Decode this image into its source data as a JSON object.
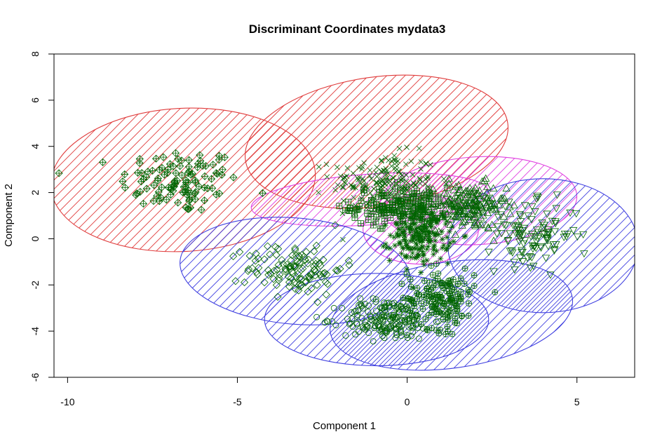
{
  "chart_data": {
    "type": "scatter",
    "title": "Discriminant Coordinates mydata3",
    "xlabel": "Component 1",
    "ylabel": "Component 2",
    "xlim": [
      -10.4,
      6.7
    ],
    "ylim": [
      -6.0,
      8.0
    ],
    "x_ticks": [
      -10,
      -5,
      0,
      5
    ],
    "y_ticks": [
      -6,
      -4,
      -2,
      0,
      2,
      4,
      6,
      8
    ],
    "x_tick_labels": [
      "-10",
      "-5",
      "0",
      "5"
    ],
    "y_tick_labels": [
      "-6",
      "-4",
      "-2",
      "0",
      "2",
      "4",
      "6",
      "8"
    ],
    "grid": false,
    "point_color": "#006400",
    "series": [
      {
        "marker": "diamond-plus",
        "center": [
          -6.7,
          2.5
        ],
        "spread": [
          1.6,
          1.3
        ],
        "count": 110,
        "ellipse": {
          "cx": -6.6,
          "cy": 2.55,
          "rx": 3.9,
          "ry": 3.1,
          "angle": -3
        },
        "ellipse_color": "#e03c3c"
      },
      {
        "marker": "x",
        "center": [
          -0.7,
          2.5
        ],
        "spread": [
          1.4,
          1.1
        ],
        "count": 160,
        "ellipse": {
          "cx": -0.9,
          "cy": 4.2,
          "rx": 3.9,
          "ry": 2.8,
          "angle": -8
        },
        "ellipse_color": "#e03c3c"
      },
      {
        "marker": "box-plus",
        "center": [
          -0.2,
          1.4
        ],
        "spread": [
          1.3,
          0.75
        ],
        "count": 160,
        "ellipse": {
          "cx": -1.1,
          "cy": 1.7,
          "rx": 3.5,
          "ry": 1.1,
          "angle": -4
        },
        "ellipse_color": "#e040e0"
      },
      {
        "marker": "star",
        "center": [
          0.4,
          0.2
        ],
        "spread": [
          0.8,
          1.1
        ],
        "count": 220,
        "ellipse": {
          "cx": 0.4,
          "cy": 0.4,
          "rx": 1.7,
          "ry": 1.5,
          "angle": 0
        },
        "ellipse_color": "#e040e0"
      },
      {
        "marker": "triangle-up",
        "center": [
          1.8,
          1.4
        ],
        "spread": [
          1.0,
          0.9
        ],
        "count": 170,
        "ellipse": {
          "cx": 2.1,
          "cy": 1.65,
          "rx": 2.9,
          "ry": 1.9,
          "angle": -3
        },
        "ellipse_color": "#e040e0"
      },
      {
        "marker": "diamond",
        "center": [
          -3.3,
          -1.3
        ],
        "spread": [
          1.3,
          1.0
        ],
        "count": 120,
        "ellipse": {
          "cx": -3.3,
          "cy": -1.4,
          "rx": 3.4,
          "ry": 2.3,
          "angle": 5
        },
        "ellipse_color": "#4040e0"
      },
      {
        "marker": "circle",
        "center": [
          -0.6,
          -3.5
        ],
        "spread": [
          1.2,
          0.8
        ],
        "count": 180,
        "ellipse": {
          "cx": -0.9,
          "cy": -3.5,
          "rx": 3.3,
          "ry": 2.0,
          "angle": 0
        },
        "ellipse_color": "#4040e0"
      },
      {
        "marker": "circle-plus",
        "center": [
          1.0,
          -2.6
        ],
        "spread": [
          0.9,
          1.2
        ],
        "count": 160,
        "ellipse": {
          "cx": 1.3,
          "cy": -3.3,
          "rx": 3.6,
          "ry": 2.3,
          "angle": -8
        },
        "ellipse_color": "#4040e0"
      },
      {
        "marker": "triangle-down",
        "center": [
          3.7,
          0.2
        ],
        "spread": [
          1.2,
          1.2
        ],
        "count": 110,
        "ellipse": {
          "cx": 4.0,
          "cy": -0.3,
          "rx": 2.8,
          "ry": 2.9,
          "angle": 0
        },
        "ellipse_color": "#4040e0"
      }
    ]
  }
}
